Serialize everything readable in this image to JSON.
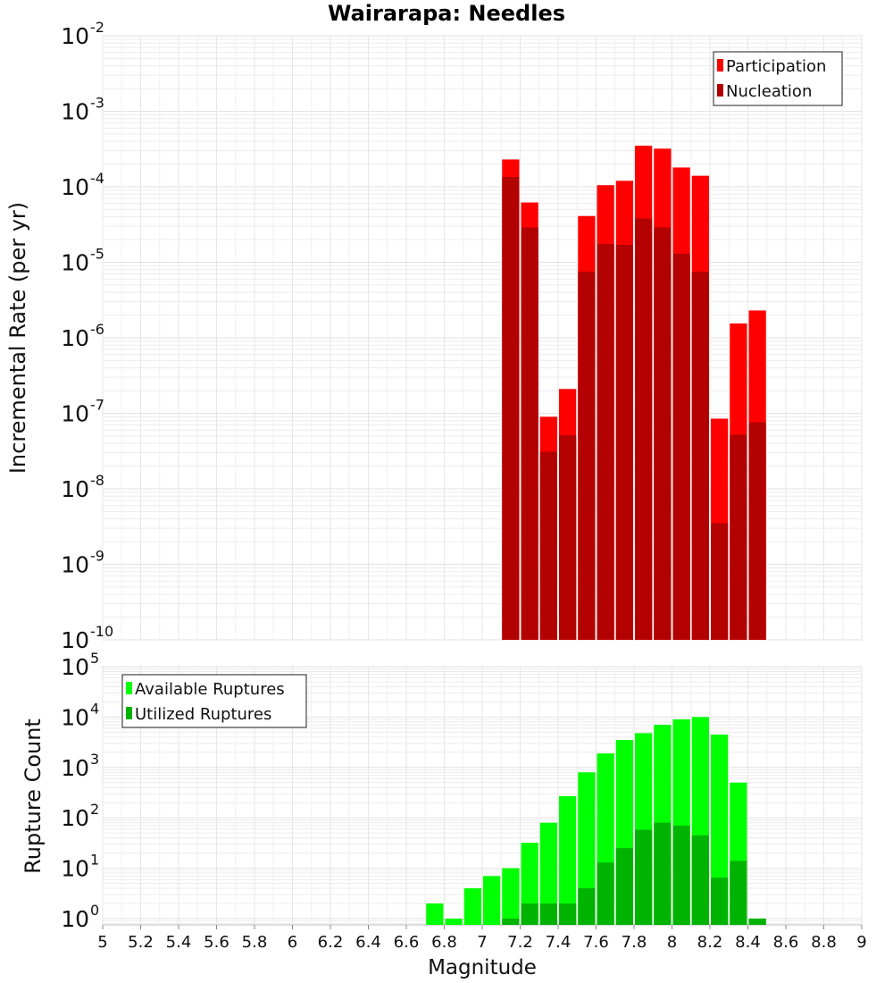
{
  "chart_data": [
    {
      "id": "top",
      "type": "bar",
      "title": "Wairarapa: Needles",
      "ylabel": "Incremental Rate (per yr)",
      "xlabel": "",
      "y_scale": "log",
      "ylim": [
        1e-10,
        0.01
      ],
      "y_ticks": [
        {
          "base": "10",
          "exp": "-10",
          "value": 1e-10
        },
        {
          "base": "10",
          "exp": "-9",
          "value": 1e-09
        },
        {
          "base": "10",
          "exp": "-8",
          "value": 1e-08
        },
        {
          "base": "10",
          "exp": "-7",
          "value": 1e-07
        },
        {
          "base": "10",
          "exp": "-6",
          "value": 1e-06
        },
        {
          "base": "10",
          "exp": "-5",
          "value": 1e-05
        },
        {
          "base": "10",
          "exp": "-4",
          "value": 0.0001
        },
        {
          "base": "10",
          "exp": "-3",
          "value": 0.001
        },
        {
          "base": "10",
          "exp": "-2",
          "value": 0.01
        }
      ],
      "xlim": [
        5,
        9
      ],
      "bin_width": 0.1,
      "grid": true,
      "legend": {
        "placement": "top-right"
      },
      "series": [
        {
          "name": "Participation",
          "color": "#ff0000",
          "x": [
            7.15,
            7.25,
            7.35,
            7.45,
            7.55,
            7.65,
            7.75,
            7.85,
            7.95,
            8.05,
            8.15,
            8.25,
            8.35,
            8.45
          ],
          "values": [
            0.00023,
            6.2e-05,
            9e-08,
            2.1e-07,
            4.1e-05,
            0.000105,
            0.00012,
            0.00035,
            0.00032,
            0.00018,
            0.00014,
            8.5e-08,
            1.55e-06,
            2.3e-06
          ]
        },
        {
          "name": "Nucleation",
          "color": "#b30000",
          "x": [
            7.15,
            7.25,
            7.35,
            7.45,
            7.55,
            7.65,
            7.75,
            7.85,
            7.95,
            8.05,
            8.15,
            8.25,
            8.35,
            8.45
          ],
          "values": [
            0.000135,
            2.9e-05,
            3.1e-08,
            5.1e-08,
            7.5e-06,
            1.75e-05,
            1.7e-05,
            3.8e-05,
            2.9e-05,
            1.3e-05,
            7.5e-06,
            3.5e-09,
            5.2e-08,
            7.6e-08
          ]
        }
      ]
    },
    {
      "id": "bottom",
      "type": "bar",
      "title": "",
      "ylabel": "Rupture Count",
      "xlabel": "Magnitude",
      "y_scale": "log",
      "ylim": [
        0.75,
        100000
      ],
      "y_ticks": [
        {
          "base": "10",
          "exp": "0",
          "value": 1
        },
        {
          "base": "10",
          "exp": "1",
          "value": 10
        },
        {
          "base": "10",
          "exp": "2",
          "value": 100
        },
        {
          "base": "10",
          "exp": "3",
          "value": 1000
        },
        {
          "base": "10",
          "exp": "4",
          "value": 10000
        },
        {
          "base": "10",
          "exp": "5",
          "value": 100000
        }
      ],
      "xlim": [
        5,
        9
      ],
      "x_ticks": [
        "5",
        "5.2",
        "5.4",
        "5.6",
        "5.8",
        "6",
        "6.2",
        "6.4",
        "6.6",
        "6.8",
        "7",
        "7.2",
        "7.4",
        "7.6",
        "7.8",
        "8",
        "8.2",
        "8.4",
        "8.6",
        "8.8",
        "9"
      ],
      "bin_width": 0.1,
      "grid": true,
      "legend": {
        "placement": "top-left"
      },
      "series": [
        {
          "name": "Available Ruptures",
          "color": "#00ff00",
          "x": [
            6.75,
            6.85,
            6.95,
            7.05,
            7.15,
            7.25,
            7.35,
            7.45,
            7.55,
            7.65,
            7.75,
            7.85,
            7.95,
            8.05,
            8.15,
            8.25,
            8.35,
            8.45
          ],
          "values": [
            2,
            1,
            4,
            7,
            10,
            32,
            80,
            270,
            800,
            1900,
            3500,
            4800,
            7000,
            9000,
            10000,
            4500,
            500,
            1
          ]
        },
        {
          "name": "Utilized Ruptures",
          "color": "#00b300",
          "x": [
            7.15,
            7.25,
            7.35,
            7.45,
            7.55,
            7.65,
            7.75,
            7.85,
            7.95,
            8.05,
            8.15,
            8.25,
            8.35,
            8.45
          ],
          "values": [
            1,
            2,
            2,
            2,
            4,
            13,
            25,
            58,
            80,
            70,
            45,
            6.5,
            14,
            1
          ]
        }
      ]
    }
  ]
}
